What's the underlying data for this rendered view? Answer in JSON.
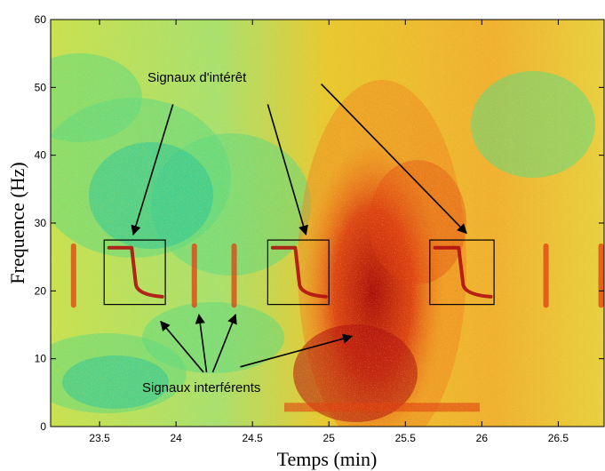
{
  "chart_data": {
    "type": "heatmap",
    "title": "",
    "xlabel": "Temps (min)",
    "ylabel": "Frequence (Hz)",
    "xlim": [
      23.18,
      26.8
    ],
    "ylim": [
      0,
      60
    ],
    "x_ticks": [
      23.5,
      24,
      24.5,
      25,
      25.5,
      26,
      26.5
    ],
    "x_tick_labels": [
      "23.5",
      "24",
      "24.5",
      "25",
      "25.5",
      "26",
      "26.5"
    ],
    "y_ticks": [
      0,
      10,
      20,
      30,
      40,
      50,
      60
    ],
    "y_tick_labels": [
      "0",
      "10",
      "20",
      "30",
      "40",
      "50",
      "60"
    ],
    "colormap": [
      "#20c0a0",
      "#60d880",
      "#d8e040",
      "#f0c030",
      "#f08020",
      "#e04010",
      "#b01010"
    ],
    "annotations": {
      "interest_label": "Signaux d'intérêt",
      "interference_label": "Signaux interférents",
      "boxes": [
        {
          "x": [
            23.53,
            23.93
          ],
          "y": [
            18,
            27.5
          ]
        },
        {
          "x": [
            24.6,
            25.0
          ],
          "y": [
            18,
            27.5
          ]
        },
        {
          "x": [
            25.66,
            26.08
          ],
          "y": [
            18,
            27.5
          ]
        }
      ],
      "interest_arrows": [
        {
          "from": [
            23.98,
            47.5
          ],
          "to": [
            23.72,
            28.3
          ]
        },
        {
          "from": [
            24.6,
            47.5
          ],
          "to": [
            24.85,
            28.3
          ]
        },
        {
          "from": [
            24.95,
            50.5
          ],
          "to": [
            25.9,
            28.5
          ]
        }
      ],
      "interference_arrows": [
        {
          "from": [
            24.18,
            8.0
          ],
          "to": [
            23.9,
            15.5
          ]
        },
        {
          "from": [
            24.2,
            8.0
          ],
          "to": [
            24.15,
            16.5
          ]
        },
        {
          "from": [
            24.24,
            8.0
          ],
          "to": [
            24.39,
            16.5
          ]
        },
        {
          "from": [
            24.42,
            8.8
          ],
          "to": [
            25.15,
            13.3
          ]
        }
      ]
    }
  }
}
